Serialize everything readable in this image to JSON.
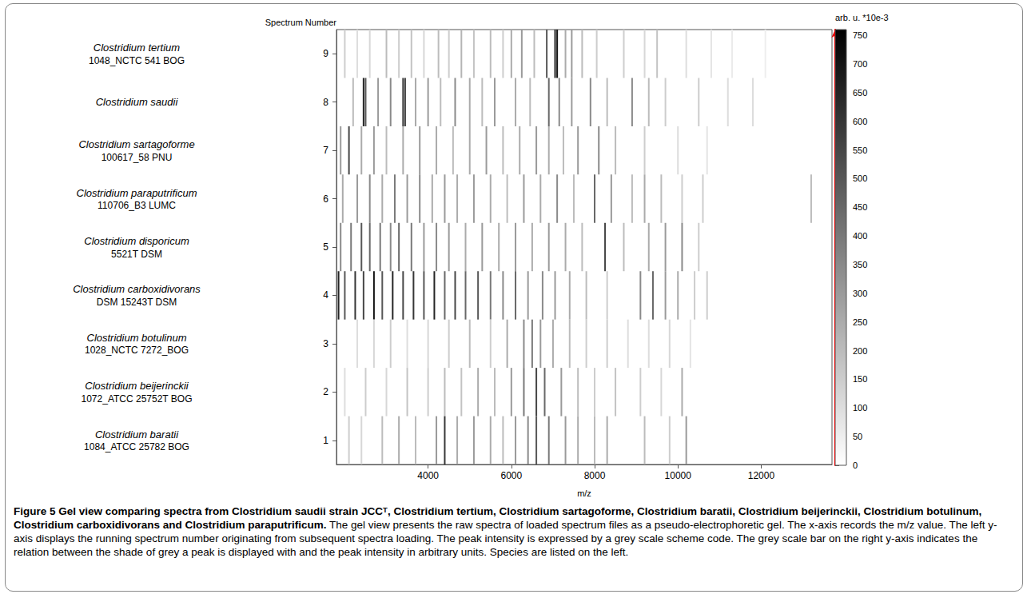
{
  "chart_data": {
    "type": "gel",
    "xlabel": "m/z",
    "ylabel": "Spectrum Number",
    "xlim": [
      1800,
      13700
    ],
    "xticks": [
      4000,
      6000,
      8000,
      10000,
      12000
    ],
    "ylim": [
      0.5,
      9.5
    ],
    "yticks": [
      1,
      2,
      3,
      4,
      5,
      6,
      7,
      8,
      9
    ],
    "series": [
      {
        "name": "Clostridium tertium",
        "strain": "1048_NCTC 541 BOG",
        "spectrum": 9,
        "peaks": [
          [
            2000,
            150
          ],
          [
            2300,
            100
          ],
          [
            2600,
            120
          ],
          [
            3000,
            200
          ],
          [
            3300,
            150
          ],
          [
            3600,
            180
          ],
          [
            3900,
            120
          ],
          [
            4250,
            200
          ],
          [
            4500,
            150
          ],
          [
            4800,
            220
          ],
          [
            5100,
            180
          ],
          [
            5500,
            200
          ],
          [
            5800,
            150
          ],
          [
            6000,
            250
          ],
          [
            6250,
            300
          ],
          [
            6550,
            200
          ],
          [
            6850,
            500
          ],
          [
            7050,
            650
          ],
          [
            7100,
            700
          ],
          [
            7300,
            250
          ],
          [
            7450,
            300
          ],
          [
            7700,
            200
          ],
          [
            8050,
            150
          ],
          [
            8700,
            150
          ],
          [
            9200,
            120
          ],
          [
            9500,
            180
          ],
          [
            10200,
            100
          ],
          [
            10800,
            80
          ],
          [
            11300,
            60
          ],
          [
            12100,
            50
          ]
        ]
      },
      {
        "name": "Clostridium saudii",
        "spectrum": 8,
        "peaks": [
          [
            2200,
            200
          ],
          [
            2450,
            650
          ],
          [
            2500,
            500
          ],
          [
            2800,
            300
          ],
          [
            3100,
            350
          ],
          [
            3400,
            600
          ],
          [
            3450,
            550
          ],
          [
            3700,
            250
          ],
          [
            4000,
            300
          ],
          [
            4300,
            200
          ],
          [
            4650,
            350
          ],
          [
            5000,
            250
          ],
          [
            5300,
            200
          ],
          [
            5600,
            300
          ],
          [
            6100,
            250
          ],
          [
            6450,
            200
          ],
          [
            6900,
            450
          ],
          [
            7150,
            350
          ],
          [
            7450,
            300
          ],
          [
            7900,
            350
          ],
          [
            8300,
            200
          ],
          [
            8900,
            350
          ],
          [
            9300,
            200
          ],
          [
            9700,
            150
          ],
          [
            10500,
            150
          ],
          [
            11200,
            100
          ],
          [
            11800,
            100
          ]
        ]
      },
      {
        "name": "Clostridium sartagoforme",
        "strain": "100617_58 PNU",
        "spectrum": 7,
        "peaks": [
          [
            1900,
            300
          ],
          [
            2100,
            550
          ],
          [
            2400,
            250
          ],
          [
            2700,
            300
          ],
          [
            3000,
            200
          ],
          [
            3400,
            250
          ],
          [
            3800,
            300
          ],
          [
            4200,
            250
          ],
          [
            4600,
            200
          ],
          [
            5000,
            250
          ],
          [
            5400,
            300
          ],
          [
            5800,
            200
          ],
          [
            6200,
            250
          ],
          [
            6600,
            300
          ],
          [
            6900,
            250
          ],
          [
            7250,
            200
          ],
          [
            7600,
            300
          ],
          [
            8100,
            350
          ],
          [
            8500,
            200
          ],
          [
            9200,
            150
          ],
          [
            10000,
            100
          ],
          [
            10700,
            80
          ]
        ]
      },
      {
        "name": "Clostridium paraputrificum",
        "strain": "110706_B3 LUMC",
        "spectrum": 6,
        "peaks": [
          [
            1950,
            250
          ],
          [
            2300,
            300
          ],
          [
            2600,
            350
          ],
          [
            2900,
            250
          ],
          [
            3200,
            400
          ],
          [
            3500,
            300
          ],
          [
            3800,
            350
          ],
          [
            4100,
            250
          ],
          [
            4400,
            300
          ],
          [
            4700,
            250
          ],
          [
            5100,
            300
          ],
          [
            5500,
            250
          ],
          [
            5900,
            200
          ],
          [
            6300,
            300
          ],
          [
            6700,
            250
          ],
          [
            7100,
            350
          ],
          [
            7500,
            200
          ],
          [
            8000,
            450
          ],
          [
            8400,
            300
          ],
          [
            8900,
            200
          ],
          [
            9200,
            250
          ],
          [
            9600,
            200
          ],
          [
            10100,
            150
          ],
          [
            10600,
            150
          ],
          [
            13200,
            200
          ]
        ]
      },
      {
        "name": "Clostridium disporicum",
        "strain": "5521T DSM",
        "spectrum": 5,
        "peaks": [
          [
            1900,
            350
          ],
          [
            2150,
            400
          ],
          [
            2400,
            500
          ],
          [
            2600,
            450
          ],
          [
            2850,
            400
          ],
          [
            3100,
            350
          ],
          [
            3300,
            450
          ],
          [
            3600,
            400
          ],
          [
            3900,
            300
          ],
          [
            4200,
            350
          ],
          [
            4500,
            300
          ],
          [
            4900,
            250
          ],
          [
            5300,
            300
          ],
          [
            5700,
            250
          ],
          [
            6100,
            300
          ],
          [
            6500,
            250
          ],
          [
            6900,
            300
          ],
          [
            7300,
            250
          ],
          [
            7700,
            200
          ],
          [
            8250,
            550
          ],
          [
            8700,
            200
          ],
          [
            9300,
            250
          ],
          [
            9700,
            300
          ],
          [
            10100,
            350
          ],
          [
            10500,
            150
          ]
        ]
      },
      {
        "name": "Clostridium carboxidivorans",
        "strain": "DSM 15243T DSM",
        "spectrum": 4,
        "peaks": [
          [
            1850,
            650
          ],
          [
            2000,
            500
          ],
          [
            2250,
            600
          ],
          [
            2450,
            550
          ],
          [
            2700,
            700
          ],
          [
            2900,
            500
          ],
          [
            3150,
            650
          ],
          [
            3400,
            550
          ],
          [
            3650,
            600
          ],
          [
            3900,
            500
          ],
          [
            4150,
            650
          ],
          [
            4400,
            450
          ],
          [
            4650,
            550
          ],
          [
            4900,
            450
          ],
          [
            5200,
            500
          ],
          [
            5500,
            400
          ],
          [
            5800,
            350
          ],
          [
            6100,
            450
          ],
          [
            6400,
            300
          ],
          [
            6750,
            350
          ],
          [
            7050,
            300
          ],
          [
            7400,
            250
          ],
          [
            7800,
            200
          ],
          [
            8300,
            150
          ],
          [
            9100,
            350
          ],
          [
            9400,
            450
          ],
          [
            9700,
            300
          ],
          [
            10000,
            250
          ],
          [
            10400,
            150
          ],
          [
            10700,
            150
          ]
        ]
      },
      {
        "name": "Clostridium botulinum",
        "strain": "1028_NCTC 7272_BOG",
        "spectrum": 3,
        "peaks": [
          [
            2300,
            100
          ],
          [
            2700,
            120
          ],
          [
            3100,
            150
          ],
          [
            3500,
            100
          ],
          [
            4000,
            120
          ],
          [
            4500,
            150
          ],
          [
            5000,
            200
          ],
          [
            5500,
            150
          ],
          [
            5900,
            250
          ],
          [
            6300,
            350
          ],
          [
            6500,
            400
          ],
          [
            6700,
            300
          ],
          [
            7000,
            250
          ],
          [
            7400,
            200
          ],
          [
            7800,
            150
          ],
          [
            8300,
            150
          ],
          [
            8800,
            100
          ],
          [
            9300,
            100
          ],
          [
            9800,
            120
          ],
          [
            10300,
            80
          ]
        ]
      },
      {
        "name": "Clostridium beijerinckii",
        "strain": "1072_ATCC 25752T BOG",
        "spectrum": 2,
        "peaks": [
          [
            2000,
            100
          ],
          [
            2500,
            150
          ],
          [
            3000,
            120
          ],
          [
            3500,
            180
          ],
          [
            4000,
            150
          ],
          [
            4400,
            200
          ],
          [
            4800,
            180
          ],
          [
            5200,
            250
          ],
          [
            5600,
            200
          ],
          [
            6000,
            300
          ],
          [
            6300,
            400
          ],
          [
            6600,
            550
          ],
          [
            6800,
            450
          ],
          [
            7200,
            300
          ],
          [
            7600,
            200
          ],
          [
            8000,
            150
          ],
          [
            8500,
            180
          ],
          [
            9100,
            150
          ],
          [
            9600,
            120
          ],
          [
            10100,
            250
          ]
        ]
      },
      {
        "name": "Clostridium baratii",
        "strain": "1084_ATCC 25782 BOG",
        "spectrum": 1,
        "peaks": [
          [
            2100,
            150
          ],
          [
            2400,
            120
          ],
          [
            2900,
            200
          ],
          [
            3300,
            250
          ],
          [
            3700,
            200
          ],
          [
            4200,
            300
          ],
          [
            4400,
            600
          ],
          [
            4700,
            250
          ],
          [
            5100,
            300
          ],
          [
            5500,
            250
          ],
          [
            5800,
            200
          ],
          [
            6100,
            300
          ],
          [
            6400,
            350
          ],
          [
            6600,
            500
          ],
          [
            6900,
            400
          ],
          [
            7300,
            300
          ],
          [
            7600,
            250
          ],
          [
            8000,
            200
          ],
          [
            8300,
            250
          ],
          [
            9200,
            200
          ],
          [
            9800,
            150
          ],
          [
            10200,
            300
          ]
        ]
      }
    ],
    "colorbar": {
      "label": "arb. u. *10e-3",
      "range": [
        0,
        760
      ],
      "ticks": [
        0,
        50,
        100,
        150,
        200,
        250,
        300,
        350,
        400,
        450,
        500,
        550,
        600,
        650,
        700,
        750
      ]
    },
    "caption": {
      "title": "Figure 5 Gel view comparing spectra from Clostridium saudii strain JCCᵀ, Clostridium tertium, Clostridium sartagoforme, Clostridium baratii, Clostridium beijerinckii, Clostridium botulinum, Clostridium carboxidivorans and Clostridium paraputrificum.",
      "text": "The gel view presents the raw spectra of loaded spectrum files as a pseudo-electrophoretic gel. The x-axis records the m/z value. The left y-axis displays the running spectrum number originating from subsequent spectra loading. The peak intensity is expressed by a grey scale scheme code. The grey scale bar on the right y-axis indicates the relation between the shade of grey a peak is displayed with and the peak intensity in arbitrary units. Species are listed on the left."
    }
  }
}
